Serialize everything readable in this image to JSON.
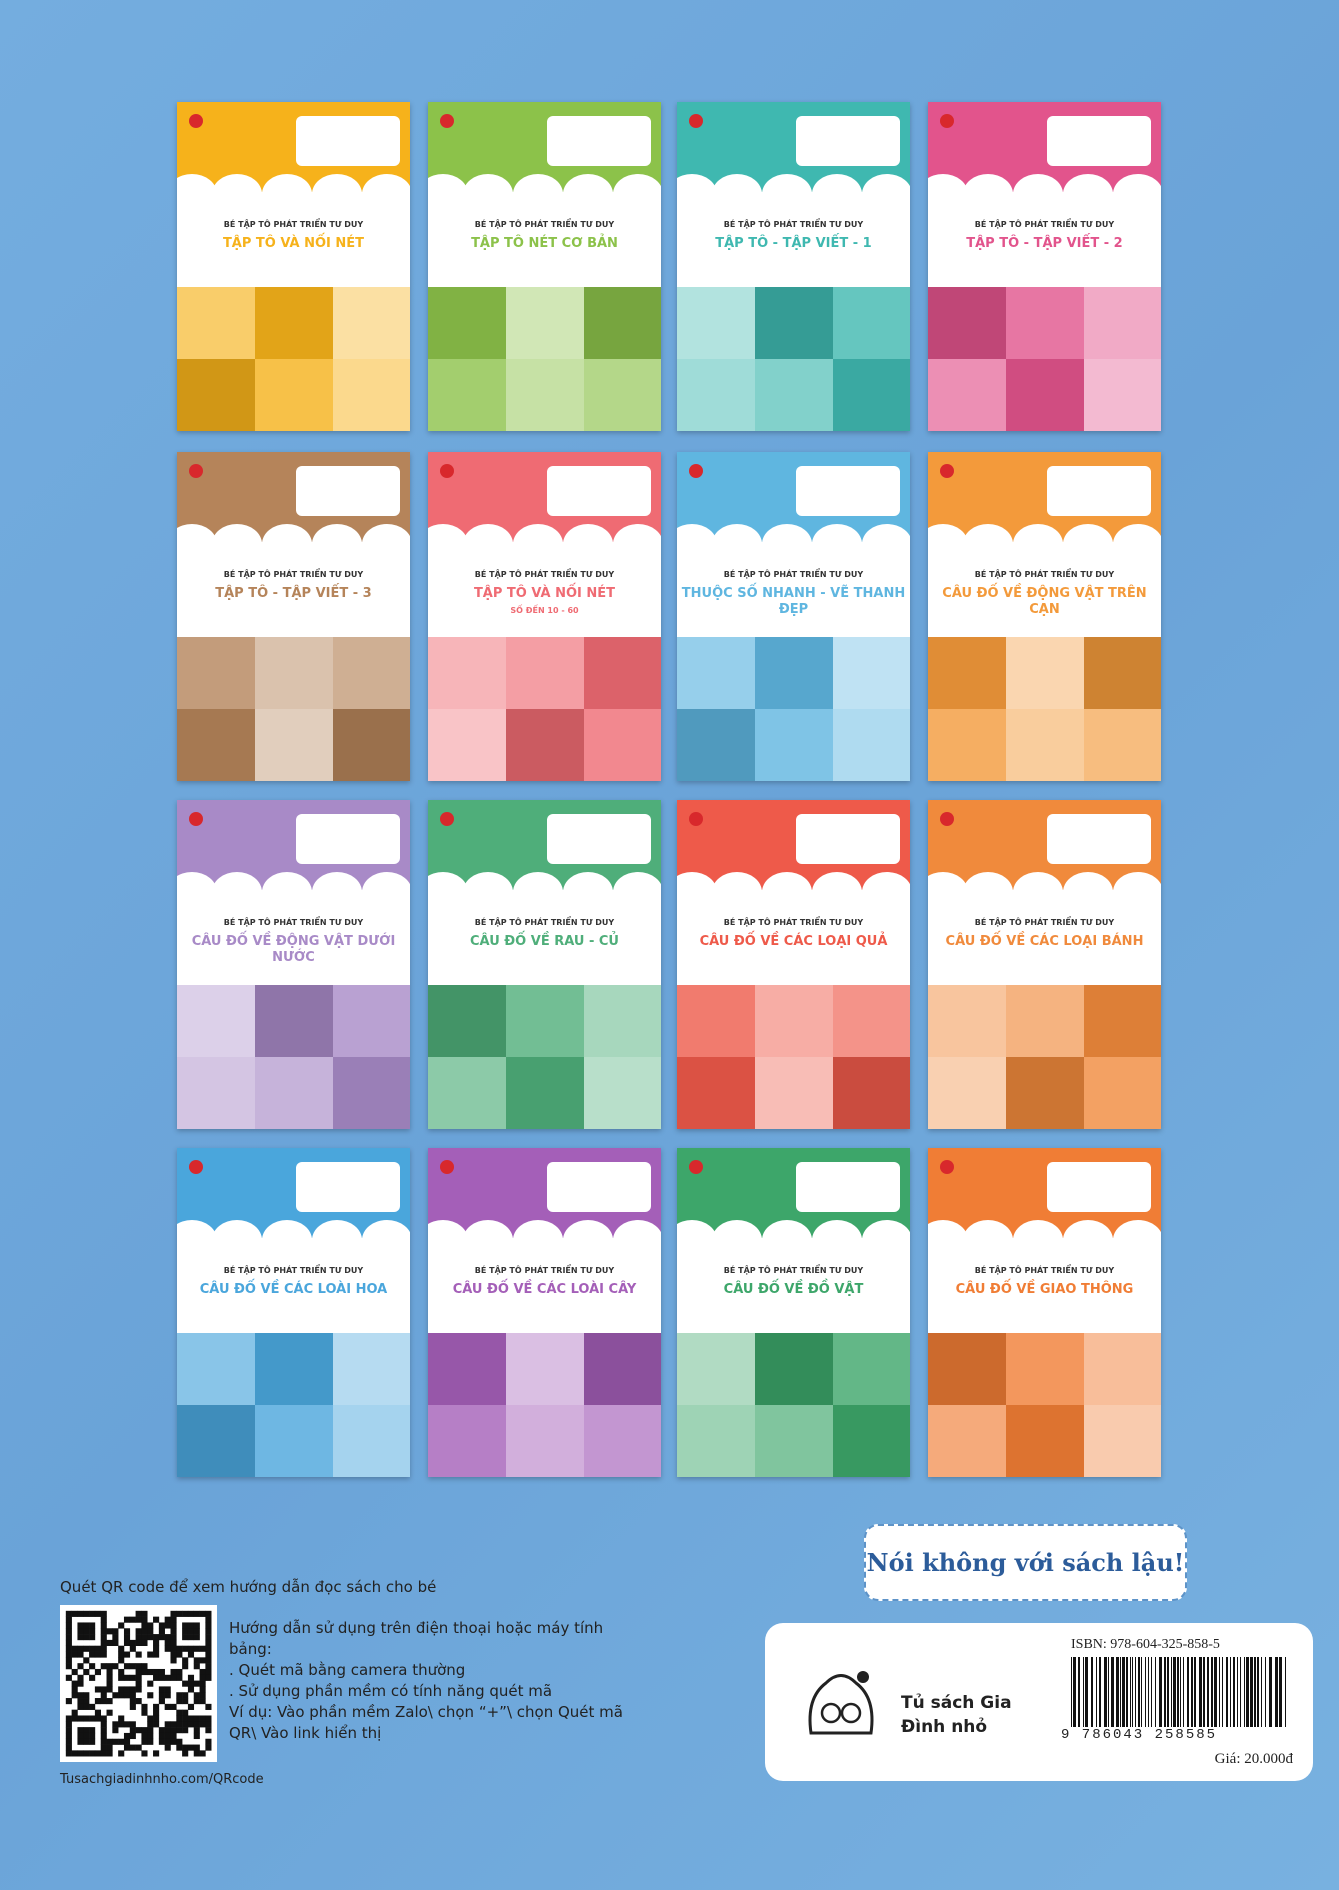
{
  "series_line": "BÉ TẬP TÔ PHÁT TRIỂN TƯ DUY",
  "books": [
    {
      "title": "TẬP TÔ VÀ NỐI NÉT",
      "color": "#f6b21b"
    },
    {
      "title": "TẬP TÔ NÉT CƠ BẢN",
      "color": "#8cc24a"
    },
    {
      "title": "TẬP TÔ - TẬP VIẾT - 1",
      "color": "#3fb8b0"
    },
    {
      "title": "TẬP TÔ - TẬP VIẾT - 2",
      "color": "#e2548c"
    },
    {
      "title": "TẬP TÔ - TẬP VIẾT - 3",
      "color": "#b5845a"
    },
    {
      "title": "TẬP TÔ VÀ NỐI NÉT",
      "subtitle": "SỐ ĐẾN 10 - 60",
      "color": "#ef6b73"
    },
    {
      "title": "THUỘC SỐ NHANH - VẼ THANH ĐẸP",
      "color": "#5fb6e0"
    },
    {
      "title": "CÂU ĐỐ VỀ ĐỘNG VẬT TRÊN CẠN",
      "color": "#f39a3b"
    },
    {
      "title": "CÂU ĐỐ VỀ ĐỘNG VẬT DƯỚI NƯỚC",
      "color": "#a88ac7"
    },
    {
      "title": "CÂU ĐỐ VỀ RAU - CỦ",
      "color": "#4fae7a"
    },
    {
      "title": "CÂU ĐỐ VỀ CÁC LOẠI QUẢ",
      "color": "#ee5a4a"
    },
    {
      "title": "CÂU ĐỐ VỀ CÁC LOẠI BÁNH",
      "color": "#f08a3c"
    },
    {
      "title": "CÂU ĐỐ VỀ CÁC LOÀI HOA",
      "color": "#4aa6dc"
    },
    {
      "title": "CÂU ĐỐ VỀ CÁC LOÀI CÂY",
      "color": "#a45fb8"
    },
    {
      "title": "CÂU ĐỐ VỀ ĐỒ VẬT",
      "color": "#3da66a"
    },
    {
      "title": "CÂU ĐỐ VỀ GIAO THÔNG",
      "color": "#f07d35"
    }
  ],
  "qr": {
    "heading": "Quét QR code để xem hướng dẫn đọc sách cho bé",
    "lines": [
      "Hướng dẫn sử dụng trên điện thoại hoặc máy tính bảng:",
      ". Quét mã bằng camera thường",
      ". Sử dụng phần mềm có tính năng quét mã",
      "Ví dụ: Vào phần mềm Zalo\\ chọn “+”\\ chọn Quét mã QR\\ Vào link hiển thị"
    ],
    "link": "Tusachgiadinhnho.com/QRcode"
  },
  "slogan": "Nói không với sách lậu!",
  "publisher": "Tủ sách Gia Đình nhỏ",
  "isbn": "ISBN: 978-604-325-858-5",
  "barcode_digits": "9 786043 258585",
  "price": "Giá: 20.000đ"
}
